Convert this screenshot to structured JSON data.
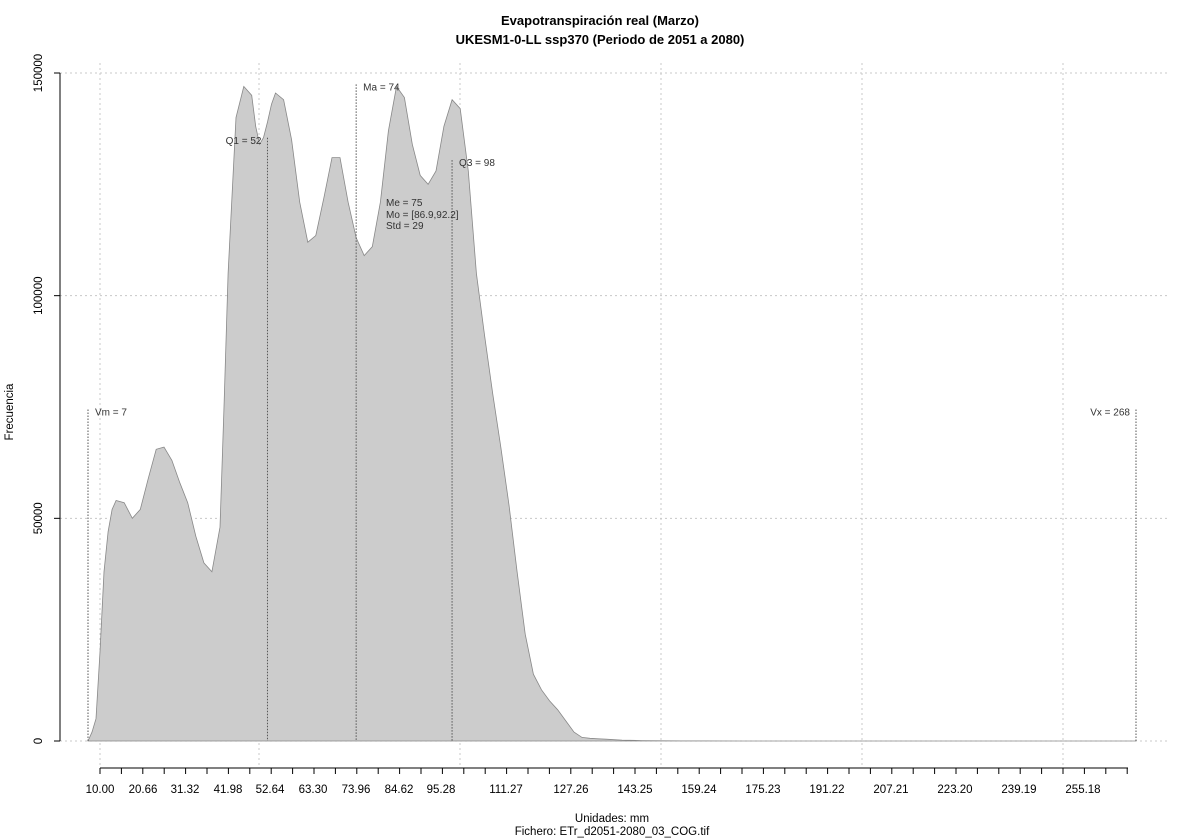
{
  "chart_data": {
    "type": "area",
    "title_line1": "Evapotranspiración real (Marzo)",
    "title_line2": "UKESM1-0-LL ssp370 (Periodo de 2051 a 2080)",
    "xlabel": "Unidades: mm",
    "file_caption": "Fichero: ETr_d2051-2080_03_COG.tif",
    "ylabel": "Frecuencia",
    "xlim": [
      7,
      268
    ],
    "ylim": [
      0,
      150000
    ],
    "grid": true,
    "x_ticks": [
      10.0,
      20.66,
      31.32,
      41.98,
      52.64,
      63.3,
      73.96,
      84.62,
      95.28,
      111.27,
      127.26,
      143.25,
      159.24,
      175.23,
      191.22,
      207.21,
      223.2,
      239.19,
      255.18
    ],
    "x_tick_labels": [
      "10.00",
      "20.66",
      "31.32",
      "41.98",
      "52.64",
      "63.30",
      "73.96",
      "84.62",
      "95.28",
      "111.27",
      "127.26",
      "143.25",
      "159.24",
      "175.23",
      "191.22",
      "207.21",
      "223.20",
      "239.19",
      "255.18"
    ],
    "y_ticks": [
      0,
      50000,
      100000,
      150000
    ],
    "y_tick_labels": [
      "0",
      "50000",
      "100000",
      "150000"
    ],
    "fill_color": "#cccccc",
    "line_color": "#888888",
    "series": [
      {
        "x": [
          7,
          8,
          9,
          10,
          11,
          12,
          13,
          14,
          16,
          18,
          20,
          22,
          24,
          26,
          28,
          30,
          32,
          34,
          36,
          38,
          40,
          41,
          42,
          44,
          46,
          48,
          49,
          50,
          51,
          52,
          53,
          54,
          56,
          58,
          60,
          62,
          64,
          66,
          68,
          70,
          72,
          74,
          76,
          78,
          80,
          82,
          84,
          86,
          88,
          90,
          92,
          94,
          96,
          98,
          100,
          102,
          104,
          106,
          108,
          110,
          112,
          114,
          116,
          118,
          120,
          122,
          124,
          126,
          128,
          130,
          132,
          134,
          136,
          138,
          140,
          142,
          145,
          150,
          155,
          160,
          170,
          200,
          230,
          268
        ],
        "y": [
          0,
          2000,
          5000,
          20000,
          38000,
          47000,
          52000,
          54000,
          53500,
          50000,
          52000,
          59000,
          65500,
          66000,
          63000,
          58000,
          53500,
          46000,
          40000,
          38000,
          48000,
          75000,
          105000,
          140000,
          147000,
          145000,
          138000,
          134000,
          135500,
          139000,
          143000,
          145500,
          144000,
          135000,
          121000,
          112000,
          113500,
          122000,
          131000,
          131000,
          121000,
          113000,
          109000,
          111000,
          121000,
          137000,
          147000,
          144500,
          134000,
          127000,
          125000,
          128000,
          138000,
          144000,
          142000,
          128000,
          105000,
          91000,
          78000,
          66000,
          53000,
          38000,
          24000,
          15000,
          11500,
          9000,
          7000,
          4500,
          2000,
          800,
          600,
          500,
          400,
          300,
          200,
          150,
          100,
          50,
          30,
          20,
          10,
          5,
          2,
          0
        ]
      }
    ],
    "annotations": {
      "vm": {
        "label": "Vm = 7",
        "x": 7,
        "y": 74000
      },
      "vx": {
        "label": "Vx = 268",
        "x": 268,
        "y": 74000
      },
      "q1": {
        "label": "Q1 = 52",
        "x": 52,
        "y": 135000
      },
      "ma": {
        "label": "Ma = 74",
        "x": 74,
        "y": 147000
      },
      "q3": {
        "label": "Q3 = 98",
        "x": 98,
        "y": 130000
      },
      "stats": [
        "Me = 75",
        "Mo = [86.9,92.2]",
        "Std = 29"
      ]
    }
  }
}
